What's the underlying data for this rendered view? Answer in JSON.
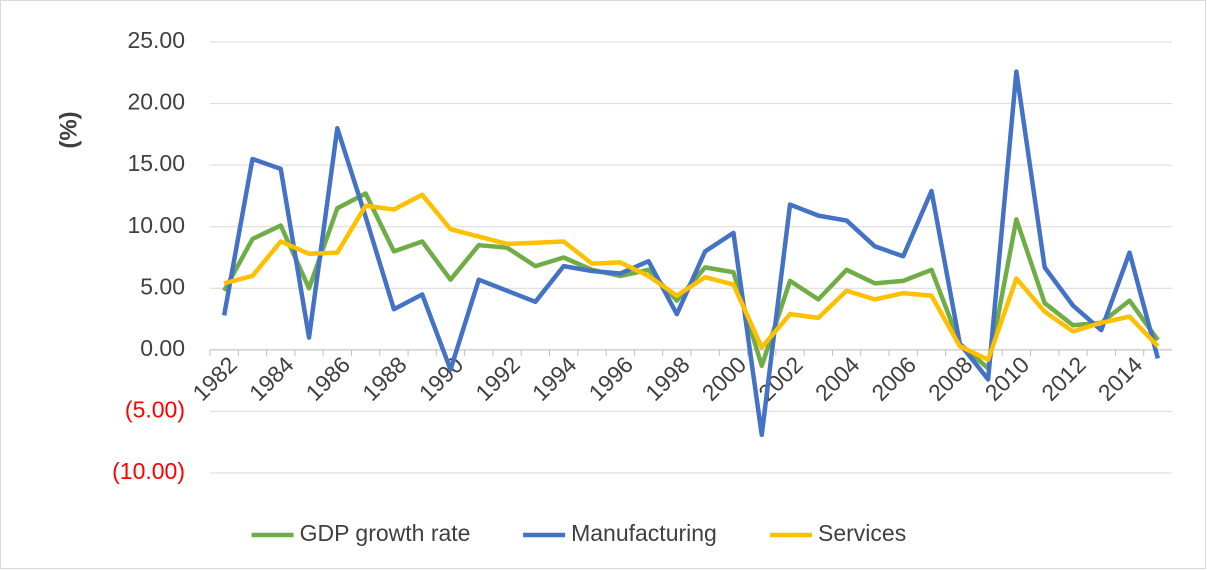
{
  "chart_data": {
    "type": "line",
    "y_label": "(%)",
    "categories": [
      "1982",
      null,
      "1984",
      null,
      "1986",
      null,
      "1988",
      null,
      "1990",
      null,
      "1992",
      null,
      "1994",
      null,
      "1996",
      null,
      "1998",
      null,
      "2000",
      null,
      "2002",
      null,
      "2004",
      null,
      "2006",
      null,
      "2008",
      null,
      "2010",
      null,
      "2012",
      null,
      "2014",
      null
    ],
    "series": [
      {
        "name": "GDP growth rate",
        "color": "#70ad47",
        "values": [
          4.8,
          9.0,
          10.1,
          5.0,
          11.5,
          12.7,
          8.0,
          8.8,
          5.7,
          8.5,
          8.3,
          6.8,
          7.5,
          6.5,
          6.0,
          6.5,
          4.0,
          6.7,
          6.3,
          -1.3,
          5.6,
          4.1,
          6.5,
          5.4,
          5.6,
          6.5,
          0.5,
          -1.5,
          10.6,
          3.8,
          2.0,
          2.2,
          4.0,
          0.8
        ]
      },
      {
        "name": "Manufacturing",
        "color": "#4472c4",
        "values": [
          2.8,
          15.5,
          14.7,
          1.0,
          18.0,
          10.8,
          3.3,
          4.5,
          -1.6,
          5.7,
          4.8,
          3.9,
          6.8,
          6.4,
          6.2,
          7.2,
          2.9,
          8.0,
          9.5,
          -6.9,
          11.8,
          10.9,
          10.5,
          8.4,
          7.6,
          12.9,
          0.5,
          -2.4,
          22.6,
          6.7,
          3.6,
          1.6,
          7.9,
          -0.7
        ]
      },
      {
        "name": "Services",
        "color": "#ffc000",
        "values": [
          5.4,
          6.0,
          8.8,
          7.8,
          7.9,
          11.7,
          11.4,
          12.6,
          9.8,
          9.2,
          8.6,
          8.7,
          8.8,
          7.0,
          7.1,
          6.0,
          4.4,
          5.9,
          5.3,
          0.2,
          2.9,
          2.6,
          4.8,
          4.1,
          4.6,
          4.4,
          0.3,
          -0.8,
          5.8,
          3.1,
          1.5,
          2.2,
          2.7,
          0.3
        ]
      }
    ],
    "ylim": [
      -10,
      25
    ],
    "yticks": [
      {
        "value": -10,
        "label": "(10.00)"
      },
      {
        "value": -5,
        "label": "(5.00)"
      },
      {
        "value": 0,
        "label": "0.00"
      },
      {
        "value": 5,
        "label": "5.00"
      },
      {
        "value": 10,
        "label": "10.00"
      },
      {
        "value": 15,
        "label": "15.00"
      },
      {
        "value": 20,
        "label": "20.00"
      },
      {
        "value": 25,
        "label": "25.00"
      }
    ],
    "negative_tick_color": "#ff0000",
    "grid": true,
    "legend": "bottom"
  }
}
